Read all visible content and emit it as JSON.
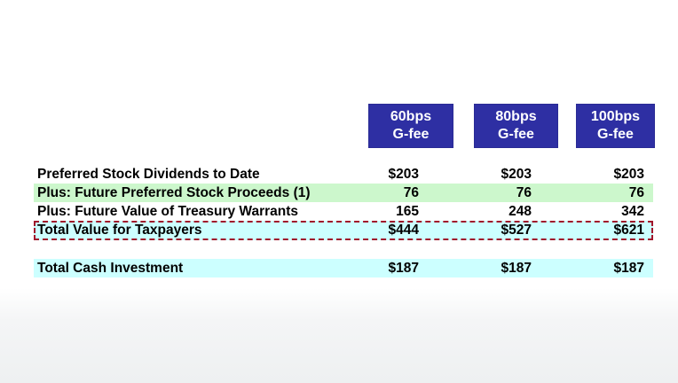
{
  "columns": [
    {
      "line1": "60bps",
      "line2": "G-fee"
    },
    {
      "line1": "80bps",
      "line2": "G-fee"
    },
    {
      "line1": "100bps",
      "line2": "G-fee"
    }
  ],
  "rows": [
    {
      "label": "Preferred Stock Dividends to Date",
      "values": [
        "$203",
        "$203",
        "$203"
      ]
    },
    {
      "label": "Plus: Future Preferred Stock Proceeds (1)",
      "values": [
        "76",
        "76",
        "76"
      ]
    },
    {
      "label": "Plus: Future Value of Treasury Warrants",
      "values": [
        "165",
        "248",
        "342"
      ]
    },
    {
      "label": "Total Value for Taxpayers",
      "values": [
        "$444",
        "$527",
        "$621"
      ]
    },
    {
      "label": "Total Cash Investment",
      "values": [
        "$187",
        "$187",
        "$187"
      ]
    }
  ],
  "colors": {
    "header_bg": "#2e2fa3",
    "row_green": "#ccf7cc",
    "row_cyan": "#ccffff",
    "dashed_border": "#a0162b"
  }
}
